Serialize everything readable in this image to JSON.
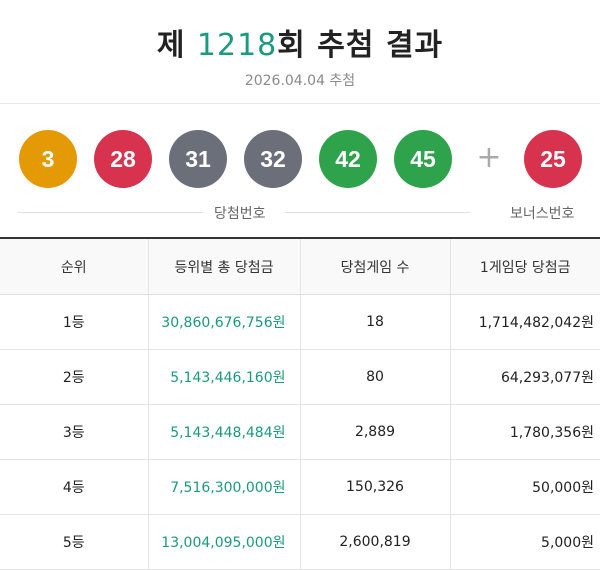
{
  "header": {
    "title_prefix": "제 ",
    "round": "1218",
    "title_suffix": "회 추첨 결과",
    "date": "2026.04.04 추첨"
  },
  "balls": [
    {
      "number": "3",
      "color": "#e39a05"
    },
    {
      "number": "28",
      "color": "#d7334e"
    },
    {
      "number": "31",
      "color": "#6b6f7a"
    },
    {
      "number": "32",
      "color": "#6b6f7a"
    },
    {
      "number": "42",
      "color": "#2ea34b"
    },
    {
      "number": "45",
      "color": "#2ea34b"
    }
  ],
  "plus_sign": "+",
  "bonus": {
    "number": "25",
    "color": "#d7334e"
  },
  "labels": {
    "winning": "당첨번호",
    "bonus": "보너스번호"
  },
  "colors": {
    "accent": "#1a9a7e"
  },
  "table": {
    "headers": [
      "순위",
      "등위별 총 당첨금",
      "당첨게임 수",
      "1게임당 당첨금"
    ],
    "rows": [
      {
        "rank": "1등",
        "total": "30,860,676,756원",
        "count": "18",
        "per_game": "1,714,482,042원"
      },
      {
        "rank": "2등",
        "total": "5,143,446,160원",
        "count": "80",
        "per_game": "64,293,077원"
      },
      {
        "rank": "3등",
        "total": "5,143,448,484원",
        "count": "2,889",
        "per_game": "1,780,356원"
      },
      {
        "rank": "4등",
        "total": "7,516,300,000원",
        "count": "150,326",
        "per_game": "50,000원"
      },
      {
        "rank": "5등",
        "total": "13,004,095,000원",
        "count": "2,600,819",
        "per_game": "5,000원"
      }
    ]
  }
}
